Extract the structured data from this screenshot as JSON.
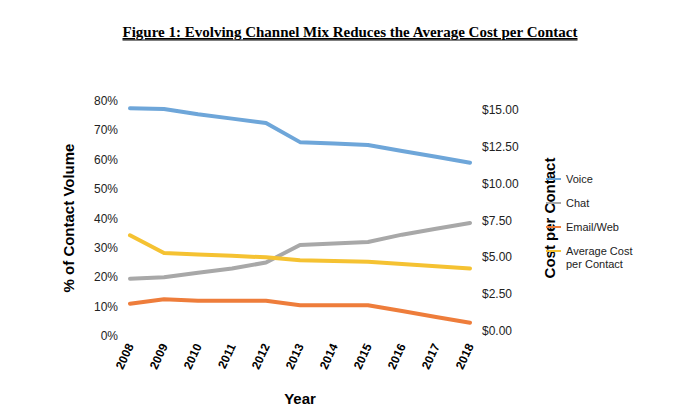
{
  "chart_data": {
    "type": "line",
    "title": "Figure 1:  Evolving Channel Mix Reduces the Average Cost per Contact",
    "x_label": "Year",
    "y_label": "% of Contact Volume",
    "y2_label": "Cost per Contact",
    "categories": [
      "2008",
      "2009",
      "2010",
      "2011",
      "2012",
      "2013",
      "2014",
      "2015",
      "2016",
      "2017",
      "2018"
    ],
    "ylim": [
      0,
      80
    ],
    "yticks": [
      {
        "value": 0,
        "label": "0%"
      },
      {
        "value": 10,
        "label": "10%"
      },
      {
        "value": 20,
        "label": "20%"
      },
      {
        "value": 30,
        "label": "30%"
      },
      {
        "value": 40,
        "label": "40%"
      },
      {
        "value": 50,
        "label": "50%"
      },
      {
        "value": 60,
        "label": "60%"
      },
      {
        "value": 70,
        "label": "70%"
      },
      {
        "value": 80,
        "label": "80%"
      }
    ],
    "y2lim": [
      0,
      15
    ],
    "y2ticks": [
      {
        "value": 0,
        "label": "$0.00"
      },
      {
        "value": 2.5,
        "label": "$2.50"
      },
      {
        "value": 5,
        "label": "$5.00"
      },
      {
        "value": 7.5,
        "label": "$7.50"
      },
      {
        "value": 10,
        "label": "$10.00"
      },
      {
        "value": 12.5,
        "label": "$12.50"
      },
      {
        "value": 15,
        "label": "$15.00"
      }
    ],
    "grid": false,
    "legend": "right",
    "series": [
      {
        "name": "Voice",
        "color": "#6ea6d9",
        "values": [
          77.5,
          77.3,
          75.5,
          74,
          72.5,
          66,
          65.5,
          65,
          63,
          61,
          59
        ]
      },
      {
        "name": "Chat",
        "color": "#a8a8a8",
        "values": [
          19.5,
          20,
          21.5,
          23,
          25,
          31,
          31.5,
          32,
          34.5,
          36.5,
          38.5
        ]
      },
      {
        "name": "Email/Web",
        "color": "#ee7d3b",
        "values": [
          11,
          12.5,
          12,
          12,
          12,
          10.5,
          10.5,
          10.5,
          8.5,
          6.5,
          4.5
        ]
      },
      {
        "name": "Average Cost per Contact",
        "color": "#f5c232",
        "axis": "y2",
        "values": [
          6.5,
          5.3,
          5.2,
          5.1,
          5.0,
          4.8,
          4.75,
          4.7,
          4.55,
          4.4,
          4.25
        ]
      }
    ]
  }
}
